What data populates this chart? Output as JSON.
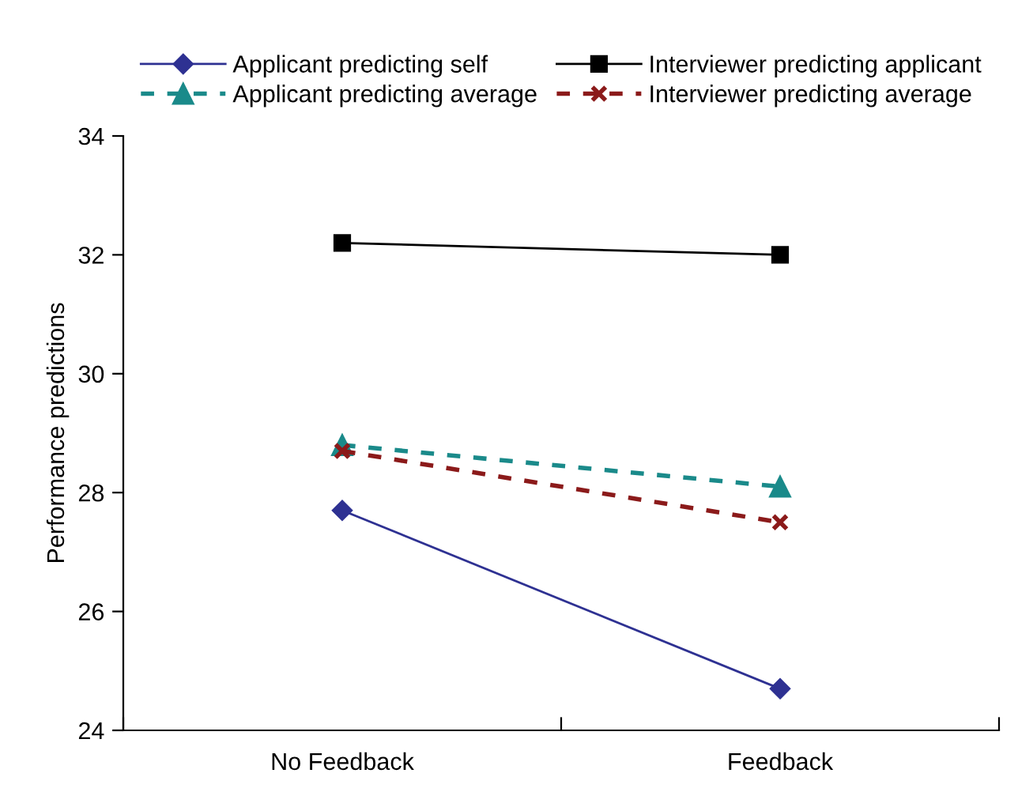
{
  "chart_data": {
    "type": "line",
    "ylabel": "Performance predictions",
    "categories": [
      "No Feedback",
      "Feedback"
    ],
    "series": [
      {
        "name": "Applicant predicting self",
        "color": "#2e3192",
        "marker": "diamond",
        "line_style": "solid",
        "values": [
          27.7,
          24.7
        ]
      },
      {
        "name": "Interviewer predicting applicant",
        "color": "#000000",
        "marker": "square",
        "line_style": "solid",
        "values": [
          32.2,
          32.0
        ]
      },
      {
        "name": "Applicant predicting average",
        "color": "#1a8a8a",
        "marker": "triangle",
        "line_style": "dashed",
        "values": [
          28.8,
          28.1
        ]
      },
      {
        "name": "Interviewer predicting average",
        "color": "#8b1a1a",
        "marker": "cross",
        "line_style": "dashed",
        "values": [
          28.7,
          27.5
        ]
      }
    ],
    "ylim": [
      24,
      34
    ],
    "yticks": [
      24,
      26,
      28,
      30,
      32,
      34
    ],
    "grid": false,
    "legend": "top"
  }
}
